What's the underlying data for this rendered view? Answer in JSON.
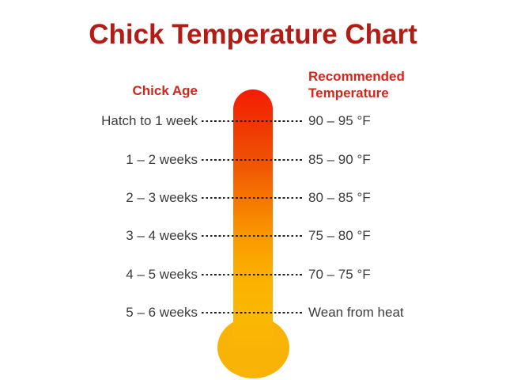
{
  "title": "Chick Temperature Chart",
  "headers": {
    "age": "Chick Age",
    "temp_line1": "Recommended",
    "temp_line2": "Temperature"
  },
  "rows": [
    {
      "age": "Hatch to 1 week",
      "temp": "90 – 95 °F"
    },
    {
      "age": "1 – 2 weeks",
      "temp": "85 – 90 °F"
    },
    {
      "age": "2 – 3 weeks",
      "temp": "80 – 85 °F"
    },
    {
      "age": "3 – 4 weeks",
      "temp": "75 – 80 °F"
    },
    {
      "age": "4 – 5 weeks",
      "temp": "70 – 75 °F"
    },
    {
      "age": "5 – 6 weeks",
      "temp": "Wean from heat"
    }
  ],
  "colors": {
    "title_red": "#b21c15",
    "header_red": "#d4261b",
    "body_text": "#3c3c3c",
    "dot_leader": "#232323",
    "thermometer_top_red": "#f41c06",
    "thermometer_mid_orange": "#f67500",
    "thermometer_bottom_yellow": "#f9b307"
  },
  "chart_data": {
    "type": "table",
    "title": "Chick Temperature Chart",
    "columns": [
      "Chick Age",
      "Recommended Temperature"
    ],
    "rows": [
      [
        "Hatch to 1 week",
        "90 – 95 °F"
      ],
      [
        "1 – 2 weeks",
        "85 – 90 °F"
      ],
      [
        "2 – 3 weeks",
        "80 – 85 °F"
      ],
      [
        "3 – 4 weeks",
        "75 – 80 °F"
      ],
      [
        "4 – 5 weeks",
        "70 – 75 °F"
      ],
      [
        "5 – 6 weeks",
        "Wean from heat"
      ]
    ],
    "temperature_ranges_f": [
      [
        90,
        95
      ],
      [
        85,
        90
      ],
      [
        80,
        85
      ],
      [
        75,
        80
      ],
      [
        70,
        75
      ],
      null
    ],
    "layout": "thermometer infographic; hot red at top grading to cool golden yellow at bulb; dotted leader lines connect age labels to temperature values"
  }
}
